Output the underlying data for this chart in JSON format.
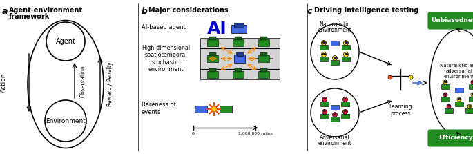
{
  "title_a": "Agent-environment\nframework",
  "title_b": "Major considerations",
  "title_c": "Driving intelligence testing",
  "label_a": "a",
  "label_b": "b",
  "label_c": "c",
  "panel_a": {
    "agent_label": "Agent",
    "environment_label": "Environment",
    "action_label": "Action",
    "observation_label": "Observation",
    "reward_label": "Reward / Penalty"
  },
  "panel_b": {
    "row1_label": "AI-based agent",
    "row2_label": "High-dimensional\nspatiotemporal\nstochastic\nenvironment",
    "row3_label": "Rareness of\nevents",
    "ai_text": "AI",
    "scale_label": "1,000,000 miles",
    "scale_start": "0"
  },
  "panel_c": {
    "nat_env_label": "Naturalistic\nenvironment",
    "adv_env_label": "Adversarial\nenvironment",
    "learning_label": "Learning\nprocess",
    "nat_adv_label": "Naturalistic and\nadversarial\nenvironment",
    "unbiasedness_label": "Unbiasedness",
    "efficiency_label": "Efficiency"
  },
  "colors": {
    "green_box": "#2e8b2e",
    "green_car": "#228B22",
    "blue_car": "#4169E1",
    "ai_blue": "#0000CD",
    "explosion_red": "#FF4500",
    "explosion_yellow": "#FFD700",
    "smiley_yellow": "#FFD700",
    "smiley_red": "#DC143C",
    "road_gray": "#D3D3D3",
    "dashed_line": "#696969",
    "arrow_orange": "#FF8C00",
    "green_button": "#228B22",
    "white": "#FFFFFF",
    "black": "#000000"
  }
}
